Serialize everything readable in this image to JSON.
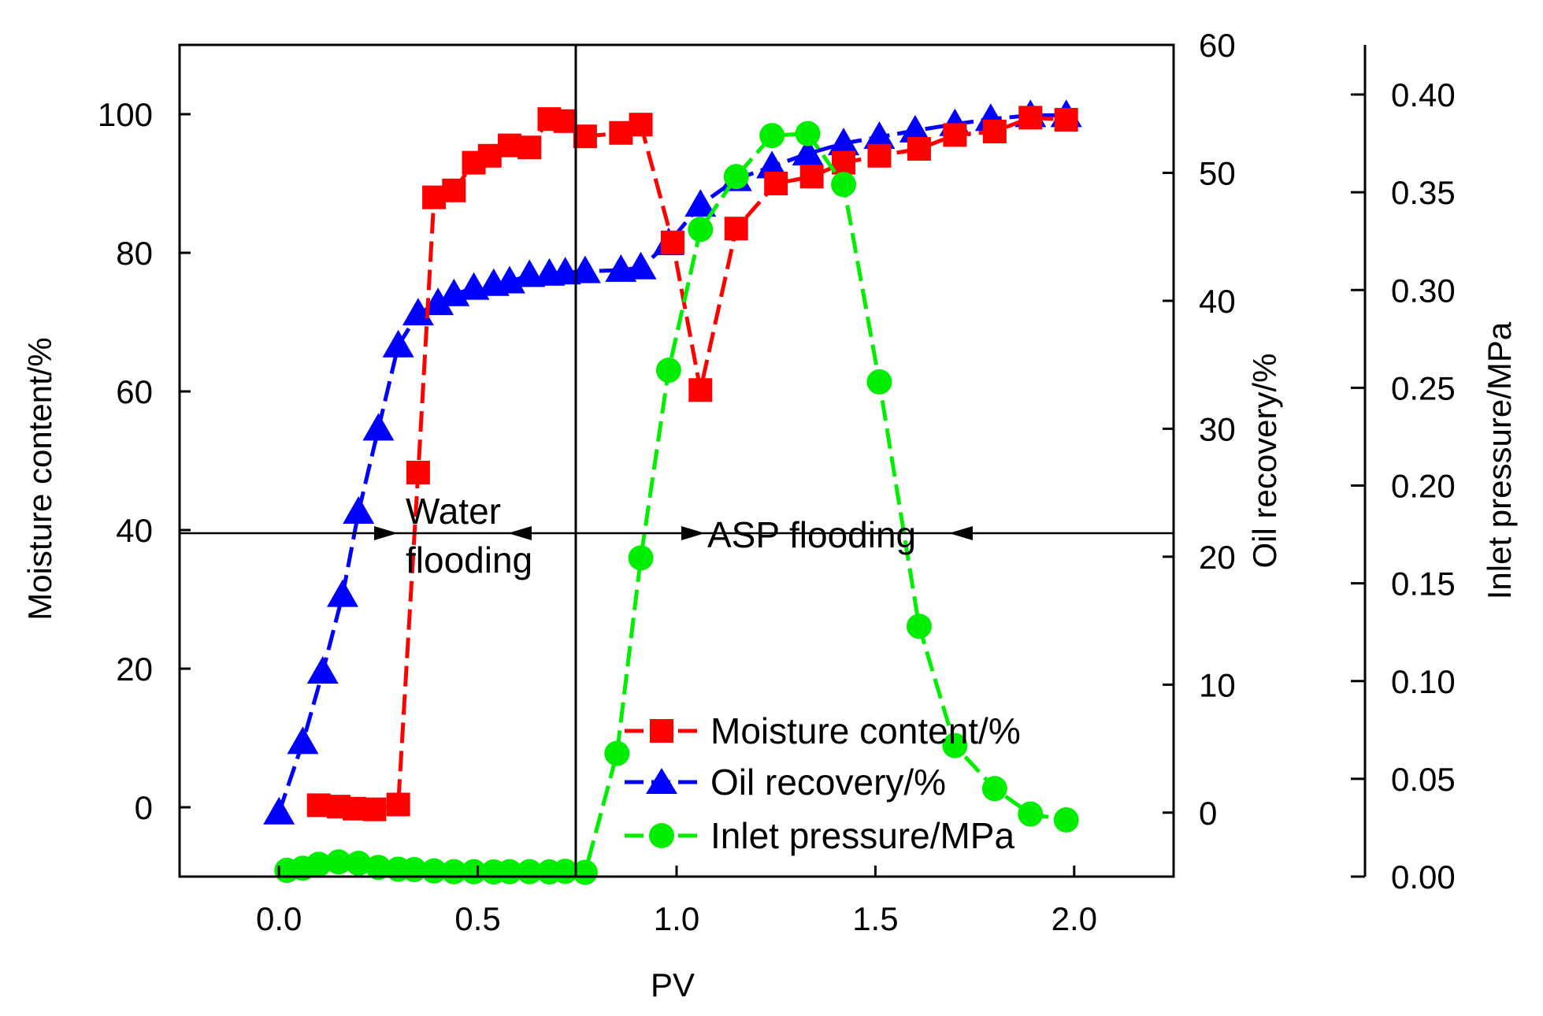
{
  "chart_data": {
    "type": "line",
    "xlabel": "PV",
    "xlim": [
      -0.25,
      2.25
    ],
    "x_ticks": [
      "0.0",
      "0.5",
      "1.0",
      "1.5",
      "2.0"
    ],
    "axes": {
      "left": {
        "label": "Moisture content/%",
        "lim": [
          -10,
          110
        ],
        "ticks": [
          "0",
          "20",
          "40",
          "60",
          "80",
          "100"
        ]
      },
      "right1": {
        "label": "Oil recovery/%",
        "lim": [
          -5,
          60
        ],
        "ticks": [
          "0",
          "10",
          "20",
          "30",
          "40",
          "50",
          "60"
        ]
      },
      "right2": {
        "label": "Inlet pressure/MPa",
        "lim": [
          0,
          0.42
        ],
        "ticks": [
          "0.00",
          "0.05",
          "0.10",
          "0.15",
          "0.20",
          "0.25",
          "0.30",
          "0.35",
          "0.40"
        ]
      }
    },
    "annotations": {
      "phase1_line1": "Water",
      "phase1_line2": "flooding",
      "phase2": "ASP flooding",
      "divider_pv": 0.75,
      "arrow_level": 40
    },
    "series": [
      {
        "name": "Moisture content/%",
        "axis": "left",
        "color": "#ff0000",
        "marker": "square",
        "x": [
          0.1,
          0.15,
          0.19,
          0.24,
          0.3,
          0.35,
          0.39,
          0.44,
          0.49,
          0.53,
          0.58,
          0.63,
          0.68,
          0.72,
          0.77,
          0.86,
          0.91,
          0.99,
          1.06,
          1.15,
          1.25,
          1.34,
          1.42,
          1.51,
          1.61,
          1.7,
          1.8,
          1.89,
          1.98
        ],
        "y": [
          0.3,
          0.1,
          -0.2,
          -0.3,
          0.4,
          48.3,
          88,
          89,
          93,
          94,
          95.5,
          95.2,
          99.3,
          99,
          96.8,
          97.3,
          98.5,
          81.5,
          60.2,
          83.5,
          90,
          91,
          93,
          94,
          95,
          97,
          97.5,
          99.5,
          99.2
        ]
      },
      {
        "name": "Oil recovery/%",
        "axis": "right1",
        "color": "#0000ff",
        "marker": "triangle",
        "x": [
          0.0,
          0.06,
          0.11,
          0.16,
          0.2,
          0.25,
          0.3,
          0.35,
          0.4,
          0.44,
          0.49,
          0.54,
          0.58,
          0.63,
          0.68,
          0.72,
          0.77,
          0.86,
          0.91,
          0.98,
          1.06,
          1.15,
          1.24,
          1.33,
          1.42,
          1.51,
          1.6,
          1.7,
          1.79,
          1.89,
          1.98
        ],
        "y": [
          0,
          5.5,
          11,
          17,
          23.5,
          30,
          36.5,
          39,
          39.8,
          40.5,
          41,
          41.3,
          41.5,
          42,
          42.1,
          42.2,
          42.3,
          42.4,
          42.6,
          44.5,
          47.5,
          49.5,
          50.5,
          51.5,
          52.3,
          52.8,
          53.3,
          53.8,
          54.2,
          54.5,
          54.5
        ]
      },
      {
        "name": "Inlet pressure/MPa",
        "axis": "right2",
        "color": "#00ee00",
        "marker": "circle",
        "x": [
          0.02,
          0.06,
          0.1,
          0.15,
          0.2,
          0.25,
          0.3,
          0.34,
          0.39,
          0.44,
          0.49,
          0.54,
          0.58,
          0.63,
          0.68,
          0.72,
          0.77,
          0.85,
          0.91,
          0.98,
          1.06,
          1.15,
          1.24,
          1.33,
          1.42,
          1.51,
          1.61,
          1.7,
          1.8,
          1.89,
          1.98
        ],
        "y": [
          0.0032,
          0.0043,
          0.0063,
          0.0075,
          0.0068,
          0.0047,
          0.0038,
          0.0036,
          0.0029,
          0.0025,
          0.0025,
          0.0024,
          0.0025,
          0.0025,
          0.0024,
          0.0027,
          0.0022,
          0.063,
          0.163,
          0.259,
          0.331,
          0.358,
          0.379,
          0.38,
          0.354,
          0.253,
          0.128,
          0.067,
          0.045,
          0.032,
          0.029
        ]
      }
    ]
  }
}
